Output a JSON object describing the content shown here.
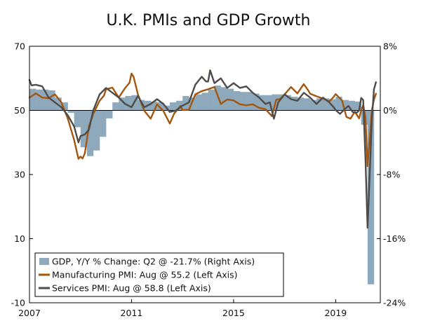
{
  "chart_data": {
    "type": "bar+line",
    "title": "U.K. PMIs and GDP Growth",
    "x_range": [
      2007.0,
      2020.75
    ],
    "x_ticks": [
      {
        "value": 2007,
        "label": "2007"
      },
      {
        "value": 2011,
        "label": "2011"
      },
      {
        "value": 2015,
        "label": "2015"
      },
      {
        "value": 2019,
        "label": "2019"
      }
    ],
    "left_axis": {
      "range": [
        -10,
        70
      ],
      "ticks": [
        {
          "value": 70,
          "label": "70"
        },
        {
          "value": 50,
          "label": "50"
        },
        {
          "value": 30,
          "label": "30"
        },
        {
          "value": 10,
          "label": "10"
        },
        {
          "value": -10,
          "label": "-10"
        }
      ]
    },
    "right_axis": {
      "range": [
        -24,
        8
      ],
      "ticks": [
        {
          "value": 8,
          "label": "8%"
        },
        {
          "value": 0,
          "label": "0%"
        },
        {
          "value": -8,
          "label": "-8%"
        },
        {
          "value": -16,
          "label": "-16%"
        },
        {
          "value": -24,
          "label": "-24%"
        }
      ]
    },
    "colors": {
      "gdp": "#8FA9BC",
      "manufacturing": "#A3560F",
      "services": "#4F4B48",
      "zero_line": "#000000",
      "frame": "#000000"
    },
    "series": [
      {
        "name": "GDP, Y/Y % Change: Q2 @ -21.7% (Right Axis)",
        "kind": "bar",
        "axis": "right",
        "quarters": [
          2007.0,
          2007.25,
          2007.5,
          2007.75,
          2008.0,
          2008.25,
          2008.5,
          2008.75,
          2009.0,
          2009.25,
          2009.5,
          2009.75,
          2010.0,
          2010.25,
          2010.5,
          2010.75,
          2011.0,
          2011.25,
          2011.5,
          2011.75,
          2012.0,
          2012.25,
          2012.5,
          2012.75,
          2013.0,
          2013.25,
          2013.5,
          2013.75,
          2014.0,
          2014.25,
          2014.5,
          2014.75,
          2015.0,
          2015.25,
          2015.5,
          2015.75,
          2016.0,
          2016.25,
          2016.5,
          2016.75,
          2017.0,
          2017.25,
          2017.5,
          2017.75,
          2018.0,
          2018.25,
          2018.5,
          2018.75,
          2019.0,
          2019.25,
          2019.5,
          2019.75,
          2020.0,
          2020.25
        ],
        "values": [
          2.7,
          2.6,
          2.6,
          2.5,
          1.6,
          1.0,
          -0.3,
          -2.1,
          -4.6,
          -5.7,
          -5.0,
          -3.3,
          -1.0,
          1.0,
          1.6,
          1.8,
          1.9,
          1.3,
          1.2,
          1.1,
          1.0,
          0.6,
          1.0,
          1.2,
          1.8,
          1.6,
          2.0,
          2.2,
          2.6,
          3.1,
          2.9,
          2.7,
          2.4,
          2.3,
          2.3,
          2.1,
          1.9,
          1.9,
          2.0,
          2.0,
          1.9,
          1.7,
          1.6,
          1.5,
          1.3,
          1.5,
          1.5,
          1.4,
          1.7,
          1.3,
          1.2,
          1.1,
          -1.8,
          -21.7
        ]
      },
      {
        "name": "Manufacturing PMI: Aug @ 55.2 (Left Axis)",
        "kind": "line",
        "axis": "left",
        "points": [
          [
            2007.0,
            54.0
          ],
          [
            2007.25,
            55.3
          ],
          [
            2007.5,
            54.0
          ],
          [
            2007.75,
            53.8
          ],
          [
            2008.0,
            55.0
          ],
          [
            2008.25,
            52.5
          ],
          [
            2008.5,
            47.5
          ],
          [
            2008.75,
            40.8
          ],
          [
            2008.83,
            38.0
          ],
          [
            2008.92,
            34.9
          ],
          [
            2009.0,
            35.6
          ],
          [
            2009.08,
            35.0
          ],
          [
            2009.17,
            36.6
          ],
          [
            2009.33,
            45.0
          ],
          [
            2009.5,
            48.9
          ],
          [
            2009.75,
            53.0
          ],
          [
            2009.92,
            54.6
          ],
          [
            2010.0,
            56.6
          ],
          [
            2010.25,
            57.1
          ],
          [
            2010.5,
            54.0
          ],
          [
            2010.75,
            57.0
          ],
          [
            2010.92,
            58.6
          ],
          [
            2011.0,
            61.5
          ],
          [
            2011.08,
            60.5
          ],
          [
            2011.25,
            55.0
          ],
          [
            2011.5,
            49.9
          ],
          [
            2011.75,
            47.4
          ],
          [
            2012.0,
            51.9
          ],
          [
            2012.25,
            49.8
          ],
          [
            2012.5,
            45.9
          ],
          [
            2012.67,
            49.0
          ],
          [
            2012.92,
            51.4
          ],
          [
            2013.0,
            50.1
          ],
          [
            2013.25,
            50.2
          ],
          [
            2013.5,
            55.0
          ],
          [
            2013.75,
            56.0
          ],
          [
            2014.0,
            56.6
          ],
          [
            2014.25,
            57.3
          ],
          [
            2014.5,
            52.0
          ],
          [
            2014.75,
            53.4
          ],
          [
            2015.0,
            53.1
          ],
          [
            2015.25,
            51.9
          ],
          [
            2015.5,
            51.6
          ],
          [
            2015.75,
            51.9
          ],
          [
            2016.0,
            50.8
          ],
          [
            2016.25,
            50.4
          ],
          [
            2016.5,
            48.2
          ],
          [
            2016.67,
            53.3
          ],
          [
            2016.83,
            53.6
          ],
          [
            2017.0,
            55.0
          ],
          [
            2017.25,
            57.3
          ],
          [
            2017.5,
            55.3
          ],
          [
            2017.75,
            58.2
          ],
          [
            2017.92,
            56.3
          ],
          [
            2018.0,
            55.2
          ],
          [
            2018.25,
            54.4
          ],
          [
            2018.5,
            53.7
          ],
          [
            2018.75,
            52.8
          ],
          [
            2018.92,
            54.2
          ],
          [
            2019.0,
            55.1
          ],
          [
            2019.25,
            53.1
          ],
          [
            2019.42,
            48.0
          ],
          [
            2019.58,
            47.4
          ],
          [
            2019.75,
            49.6
          ],
          [
            2019.92,
            47.5
          ],
          [
            2020.0,
            50.0
          ],
          [
            2020.08,
            51.7
          ],
          [
            2020.17,
            47.8
          ],
          [
            2020.25,
            32.6
          ],
          [
            2020.33,
            40.7
          ],
          [
            2020.42,
            50.1
          ],
          [
            2020.5,
            53.3
          ],
          [
            2020.58,
            55.2
          ]
        ]
      },
      {
        "name": "Services PMI: Aug @ 58.8 (Left Axis)",
        "kind": "line",
        "axis": "left",
        "points": [
          [
            2007.0,
            59.5
          ],
          [
            2007.08,
            57.8
          ],
          [
            2007.25,
            58.0
          ],
          [
            2007.5,
            57.5
          ],
          [
            2007.75,
            54.0
          ],
          [
            2008.0,
            52.5
          ],
          [
            2008.25,
            51.0
          ],
          [
            2008.5,
            48.5
          ],
          [
            2008.75,
            45.0
          ],
          [
            2008.92,
            40.0
          ],
          [
            2009.0,
            42.0
          ],
          [
            2009.17,
            42.5
          ],
          [
            2009.33,
            44.0
          ],
          [
            2009.5,
            50.0
          ],
          [
            2009.75,
            55.0
          ],
          [
            2010.0,
            57.0
          ],
          [
            2010.25,
            55.5
          ],
          [
            2010.5,
            54.0
          ],
          [
            2010.75,
            52.0
          ],
          [
            2011.0,
            51.0
          ],
          [
            2011.25,
            54.5
          ],
          [
            2011.5,
            51.0
          ],
          [
            2011.75,
            52.0
          ],
          [
            2012.0,
            53.5
          ],
          [
            2012.25,
            52.0
          ],
          [
            2012.5,
            49.5
          ],
          [
            2012.75,
            50.0
          ],
          [
            2013.0,
            51.5
          ],
          [
            2013.25,
            52.5
          ],
          [
            2013.5,
            58.0
          ],
          [
            2013.75,
            60.5
          ],
          [
            2013.92,
            59.0
          ],
          [
            2014.0,
            59.0
          ],
          [
            2014.08,
            62.5
          ],
          [
            2014.25,
            58.5
          ],
          [
            2014.5,
            60.0
          ],
          [
            2014.75,
            57.0
          ],
          [
            2015.0,
            58.5
          ],
          [
            2015.25,
            57.0
          ],
          [
            2015.5,
            57.5
          ],
          [
            2015.75,
            55.5
          ],
          [
            2016.0,
            54.0
          ],
          [
            2016.25,
            52.0
          ],
          [
            2016.42,
            52.5
          ],
          [
            2016.58,
            47.4
          ],
          [
            2016.75,
            52.5
          ],
          [
            2017.0,
            55.0
          ],
          [
            2017.25,
            53.5
          ],
          [
            2017.5,
            53.0
          ],
          [
            2017.75,
            55.5
          ],
          [
            2018.0,
            54.0
          ],
          [
            2018.25,
            52.0
          ],
          [
            2018.5,
            54.0
          ],
          [
            2018.75,
            52.5
          ],
          [
            2018.92,
            51.0
          ],
          [
            2019.0,
            50.1
          ],
          [
            2019.17,
            48.9
          ],
          [
            2019.33,
            50.2
          ],
          [
            2019.5,
            51.4
          ],
          [
            2019.67,
            49.5
          ],
          [
            2019.83,
            49.3
          ],
          [
            2019.92,
            50.0
          ],
          [
            2020.0,
            53.9
          ],
          [
            2020.08,
            53.2
          ],
          [
            2020.17,
            34.5
          ],
          [
            2020.25,
            13.4
          ],
          [
            2020.33,
            29.0
          ],
          [
            2020.42,
            47.1
          ],
          [
            2020.5,
            56.5
          ],
          [
            2020.58,
            58.8
          ]
        ]
      }
    ],
    "legend": [
      {
        "label": "GDP, Y/Y % Change: Q2 @ -21.7% (Right Axis)",
        "symbol": "bar"
      },
      {
        "label": "Manufacturing PMI: Aug @ 55.2 (Left Axis)",
        "symbol": "line-manufacturing"
      },
      {
        "label": "Services PMI: Aug @ 58.8 (Left Axis)",
        "symbol": "line-services"
      }
    ],
    "legend_position": "bottom-left"
  }
}
